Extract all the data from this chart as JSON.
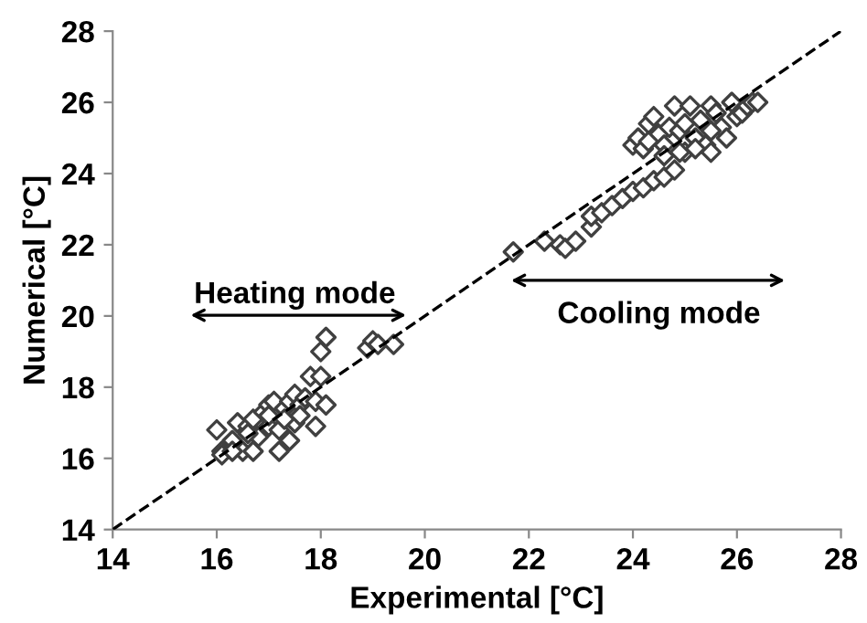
{
  "chart_data": {
    "type": "scatter",
    "xlabel": "Experimental [°C]",
    "ylabel": "Numerical [°C]",
    "xlim": [
      14,
      28
    ],
    "ylim": [
      14,
      28
    ],
    "xticks": [
      14,
      16,
      18,
      20,
      22,
      24,
      26,
      28
    ],
    "yticks": [
      14,
      16,
      18,
      20,
      22,
      24,
      26,
      28
    ],
    "grid": false,
    "legend": false,
    "marker": "diamond",
    "annotations": [
      "Heating mode",
      "Cooling mode"
    ],
    "series": [
      {
        "color": "#404040",
        "x": [
          16.0,
          16.1,
          16.1,
          16.3,
          16.4,
          16.5,
          16.6,
          16.7,
          16.7,
          16.8,
          16.9,
          17.0,
          17.0,
          17.1,
          17.2,
          17.2,
          17.3,
          17.4,
          17.4,
          17.5,
          17.5,
          17.6,
          17.7,
          17.8,
          17.9,
          17.9,
          18.0,
          18.1,
          18.0,
          18.1,
          18.9,
          19.0,
          19.1,
          19.4,
          16.3,
          16.6,
          17.0,
          17.3,
          17.6,
          21.7,
          22.3,
          22.6,
          22.7,
          22.9,
          23.2,
          23.2,
          23.4,
          23.6,
          23.8,
          24.0,
          24.2,
          24.4,
          24.6,
          24.8,
          24.0,
          24.1,
          24.2,
          24.3,
          24.4,
          24.5,
          24.6,
          24.7,
          24.8,
          24.9,
          25.0,
          25.1,
          25.2,
          25.3,
          25.4,
          25.5,
          25.5,
          25.6,
          25.7,
          25.8,
          25.9,
          26.0,
          26.1,
          26.2,
          26.3,
          26.4,
          24.6,
          24.9,
          25.2,
          25.5,
          24.3,
          25.0
        ],
        "values": [
          16.8,
          16.2,
          16.1,
          16.5,
          17.0,
          16.2,
          16.9,
          17.1,
          16.2,
          16.6,
          17.3,
          17.5,
          16.9,
          17.6,
          16.2,
          16.8,
          17.4,
          17.6,
          16.5,
          17.8,
          17.0,
          17.5,
          17.7,
          18.3,
          16.9,
          17.6,
          18.3,
          17.5,
          19.0,
          19.4,
          19.1,
          19.3,
          19.2,
          19.2,
          16.2,
          16.7,
          17.2,
          17.1,
          17.2,
          21.8,
          22.1,
          22.0,
          21.9,
          22.1,
          22.5,
          22.8,
          22.9,
          23.1,
          23.3,
          23.5,
          23.6,
          23.8,
          23.9,
          24.1,
          24.8,
          25.0,
          24.7,
          25.4,
          25.6,
          25.1,
          24.8,
          25.3,
          25.9,
          25.2,
          24.6,
          25.9,
          25.0,
          25.5,
          24.8,
          25.9,
          24.6,
          25.7,
          25.3,
          25.0,
          26.0,
          25.6,
          25.7,
          25.9,
          26.0,
          26.0,
          24.5,
          24.6,
          24.7,
          25.2,
          24.9,
          25.4
        ]
      },
      {
        "type": "line",
        "color": "#000000",
        "line_style": "dashed",
        "marker": "none",
        "x": [
          14,
          28
        ],
        "values": [
          14,
          28
        ]
      }
    ]
  }
}
